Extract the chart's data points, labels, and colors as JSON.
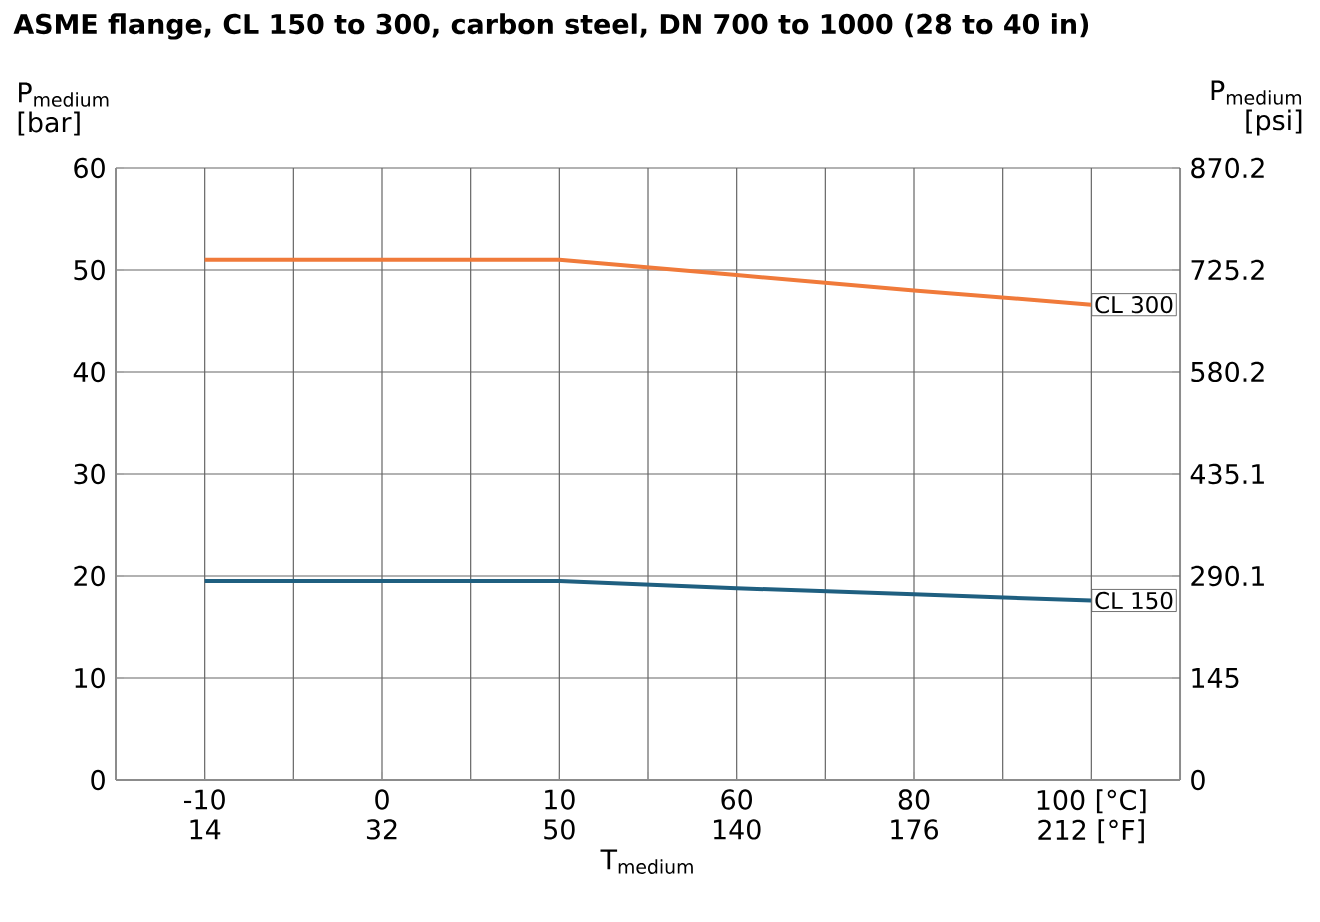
{
  "chart_data": {
    "type": "line",
    "title": "ASME flange, CL 150 to 300, carbon steel, DN 700 to 1000 (28 to 40 in)",
    "xlabel": "T$_{medium}$",
    "ylabel": "P$_{medium}$ [bar]",
    "y2label": "P$_{medium}$ [psi]",
    "categories": [
      "-10",
      "0",
      "10",
      "60",
      "80",
      "100 [°C]"
    ],
    "annotations": [
      "14",
      "32",
      "50",
      "140",
      "176",
      "212 [°F]"
    ],
    "series": [
      {
        "name": "CL 300",
        "color": "#f07a3a",
        "values": [
          51,
          51,
          51,
          49.5,
          48,
          46.6
        ]
      },
      {
        "name": "CL 150",
        "color": "#1f5f80",
        "values": [
          19.5,
          19.5,
          19.5,
          18.8,
          18.2,
          17.6
        ]
      }
    ],
    "ylim": [
      0,
      60
    ],
    "yticks": [
      0,
      10,
      20,
      30,
      40,
      50,
      60
    ],
    "y2lim": [
      0,
      870.2
    ],
    "y2ticks": [
      0,
      145,
      290.1,
      435.1,
      580.2,
      725.2,
      870.2
    ],
    "grid": true
  }
}
